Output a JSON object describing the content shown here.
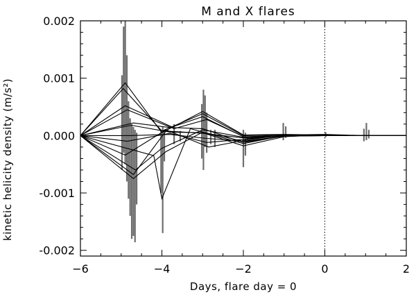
{
  "chart_data": {
    "type": "line",
    "title": "M and X flares",
    "xlabel": "Days, flare day = 0",
    "ylabel": "kinetic helicity density (m/s²)",
    "xlim": [
      -6,
      2
    ],
    "ylim": [
      -0.0021,
      0.002
    ],
    "xticks": [
      -6,
      -4,
      -2,
      0,
      2
    ],
    "xtick_labels": [
      "−6",
      "−4",
      "−2",
      "0",
      "2"
    ],
    "yticks": [
      0.002,
      0.001,
      0.0,
      -0.001,
      -0.002
    ],
    "ytick_labels": [
      "0.002",
      "0.001",
      "0.000",
      "-0.001",
      "-0.002"
    ],
    "reference_line_x": 0,
    "grid": false,
    "series": [
      {
        "x": [
          -6,
          -4.9,
          -4.0,
          -3.0,
          -2.0,
          -1.0,
          0.0,
          1.0,
          2.0
        ],
        "values": [
          0,
          0.00092,
          5e-05,
          0.00042,
          1e-05,
          2e-05,
          1e-05,
          0.0,
          0
        ]
      },
      {
        "x": [
          -6,
          -4.95,
          -4.0,
          -3.0,
          -2.0,
          -1.0,
          0.0,
          1.0,
          2.0
        ],
        "values": [
          0,
          0.00082,
          8e-05,
          0.00038,
          0.0,
          1e-05,
          2e-05,
          0.0,
          0
        ]
      },
      {
        "x": [
          -6,
          -4.9,
          -3.75,
          -3.0,
          -2.0,
          -1.0,
          0.0,
          1.0,
          2.0
        ],
        "values": [
          0,
          0.00052,
          0.00015,
          0.00033,
          -2e-05,
          0.0,
          1e-05,
          0.0,
          0
        ]
      },
      {
        "x": [
          -6,
          -4.85,
          -3.7,
          -2.9,
          -1.9,
          -1.0,
          0.0,
          1.0,
          2.0
        ],
        "values": [
          0,
          0.00045,
          0.00012,
          0.00028,
          -5e-05,
          0.0,
          0.0,
          0.0,
          0
        ]
      },
      {
        "x": [
          -6,
          -4.7,
          -3.8,
          -3.0,
          -2.0,
          -1.0,
          0.0,
          1.0,
          2.0
        ],
        "values": [
          0,
          0.00022,
          0.00014,
          0.00012,
          -0.00012,
          -1e-05,
          0.0,
          0.0,
          0
        ]
      },
      {
        "x": [
          -6,
          -4.75,
          -3.8,
          -3.0,
          -2.0,
          -1.0,
          0.0,
          1.0,
          2.0
        ],
        "values": [
          0,
          0.00018,
          6e-05,
          5e-05,
          -0.00018,
          -2e-05,
          1e-05,
          0.0,
          0
        ]
      },
      {
        "x": [
          -6,
          -4.8,
          -3.8,
          -2.9,
          -1.9,
          -1.0,
          0.0,
          1.0,
          2.0
        ],
        "values": [
          0,
          0.0,
          2e-05,
          -5e-05,
          -0.0001,
          -1e-05,
          0.0,
          0.0,
          0
        ]
      },
      {
        "x": [
          -6,
          -4.85,
          -3.8,
          -2.9,
          -1.9,
          -1.0,
          0.0,
          1.0,
          2.0
        ],
        "values": [
          0,
          -0.0001,
          4e-05,
          -0.00012,
          -6e-05,
          0.0,
          0.0,
          0.0,
          0
        ]
      },
      {
        "x": [
          -6,
          -4.9,
          -3.9,
          -2.85,
          -1.95,
          -1.0,
          0.0,
          1.0,
          2.0
        ],
        "values": [
          0,
          -0.00034,
          0.0001,
          -0.0002,
          -8e-05,
          1e-05,
          0.0,
          0.0,
          0
        ]
      },
      {
        "x": [
          -6,
          -4.65,
          -4.0,
          -3.0,
          -2.0,
          -1.0,
          0.0,
          1.0,
          2.0
        ],
        "values": [
          0,
          -0.0006,
          -0.00022,
          0.0001,
          -3e-05,
          0.0,
          0.0,
          0.0,
          0
        ]
      },
      {
        "x": [
          -6,
          -4.7,
          -3.9,
          -3.0,
          -2.0,
          -1.0,
          0.0,
          1.0,
          2.0
        ],
        "values": [
          0,
          -0.00075,
          -0.00028,
          6e-05,
          -0.0001,
          -1e-05,
          0.0,
          0.0,
          0
        ]
      },
      {
        "x": [
          -6,
          -4.7,
          -3.9,
          -3.0,
          -2.0,
          -1.0,
          0.0,
          1.0,
          2.0
        ],
        "values": [
          0,
          -0.00068,
          8e-05,
          4e-05,
          -4e-05,
          0.0,
          0.0,
          0.0,
          0
        ]
      },
      {
        "x": [
          -6,
          -4.2,
          -4.0,
          -3.3,
          -2.0,
          -1.0,
          0.0,
          1.0,
          2.0
        ],
        "values": [
          0,
          -0.00035,
          -0.0011,
          0.00012,
          -0.00014,
          0.0,
          0.0,
          0.0,
          0
        ]
      }
    ],
    "spikes": [
      {
        "x": -4.98,
        "values": [
          -0.0006,
          0.00105
        ]
      },
      {
        "x": -4.94,
        "values": [
          -0.0003,
          0.0019
        ]
      },
      {
        "x": -4.9,
        "values": [
          -0.0005,
          0.002
        ]
      },
      {
        "x": -4.86,
        "values": [
          -0.0008,
          0.0014
        ]
      },
      {
        "x": -4.82,
        "values": [
          -0.0011,
          0.0006
        ]
      },
      {
        "x": -4.78,
        "values": [
          -0.0014,
          0.0003
        ]
      },
      {
        "x": -4.74,
        "values": [
          -0.0018,
          0.0002
        ]
      },
      {
        "x": -4.7,
        "values": [
          -0.00175,
          0.00015
        ]
      },
      {
        "x": -4.66,
        "values": [
          -0.00186,
          0.0001
        ]
      },
      {
        "x": -4.62,
        "values": [
          -0.0012,
          5e-05
        ]
      },
      {
        "x": -4.02,
        "values": [
          -0.001,
          0.0001
        ]
      },
      {
        "x": -3.98,
        "values": [
          -0.0017,
          0.00015
        ]
      },
      {
        "x": -3.94,
        "values": [
          -0.00045,
          8e-05
        ]
      },
      {
        "x": -3.7,
        "values": [
          -0.00015,
          0.0002
        ]
      },
      {
        "x": -3.55,
        "values": [
          -0.0001,
          8e-05
        ]
      },
      {
        "x": -3.02,
        "values": [
          -0.0004,
          0.00055
        ]
      },
      {
        "x": -2.98,
        "values": [
          -0.0006,
          0.0008
        ]
      },
      {
        "x": -2.94,
        "values": [
          -0.0002,
          0.0007
        ]
      },
      {
        "x": -2.9,
        "values": [
          -0.0003,
          0.0004
        ]
      },
      {
        "x": -2.8,
        "values": [
          -0.00015,
          0.0001
        ]
      },
      {
        "x": -2.7,
        "values": [
          -0.0002,
          0.0001
        ]
      },
      {
        "x": -2.0,
        "values": [
          -0.00055,
          0.0001
        ]
      },
      {
        "x": -1.95,
        "values": [
          -0.00035,
          5e-05
        ]
      },
      {
        "x": -1.02,
        "values": [
          -8e-05,
          0.00022
        ]
      },
      {
        "x": -0.96,
        "values": [
          -4e-05,
          0.00016
        ]
      },
      {
        "x": 0.02,
        "values": [
          -3e-05,
          6e-05
        ]
      },
      {
        "x": 0.96,
        "values": [
          -0.0001,
          0.00012
        ]
      },
      {
        "x": 1.02,
        "values": [
          -8e-05,
          0.00022
        ]
      },
      {
        "x": 1.08,
        "values": [
          -5e-05,
          0.0001
        ]
      }
    ]
  }
}
